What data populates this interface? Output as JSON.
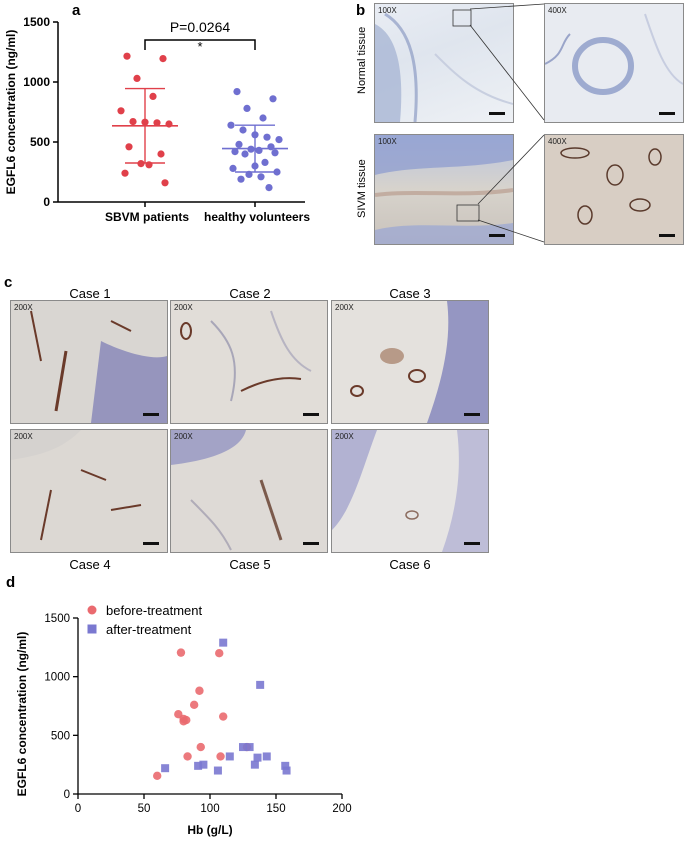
{
  "panels": {
    "a": "a",
    "b": "b",
    "c": "c",
    "d": "d"
  },
  "chart_data": [
    {
      "type": "scatter",
      "title": "",
      "ylabel": "EGFL6 concentration (ng/ml)",
      "xlabel": "",
      "ylim": [
        0,
        1500
      ],
      "yticks": [
        "0",
        "500",
        "1000",
        "1500"
      ],
      "categories": [
        "SBVM patients",
        "healthy volunteers"
      ],
      "annotation_p": "P=0.0264",
      "annotation_star": "*",
      "series": [
        {
          "category": "SBVM patients",
          "color": "#e0404a",
          "mean": 635,
          "sd_upper": 945,
          "sd_lower": 325,
          "values": [
            1215,
            1195,
            1030,
            880,
            760,
            670,
            665,
            660,
            650,
            460,
            400,
            320,
            310,
            240,
            160
          ]
        },
        {
          "category": "healthy volunteers",
          "color": "#6f6fd0",
          "mean": 445,
          "sd_upper": 640,
          "sd_lower": 250,
          "values": [
            920,
            860,
            780,
            700,
            640,
            600,
            560,
            540,
            520,
            480,
            460,
            440,
            430,
            420,
            410,
            400,
            330,
            300,
            280,
            250,
            230,
            210,
            190,
            120
          ]
        }
      ]
    },
    {
      "type": "scatter",
      "title": "",
      "xlabel": "Hb (g/L)",
      "ylabel": "EGFL6 concentration (ng/ml)",
      "xlim": [
        0,
        200
      ],
      "ylim": [
        0,
        1500
      ],
      "xticks": [
        "0",
        "50",
        "100",
        "150",
        "200"
      ],
      "yticks": [
        "0",
        "500",
        "1000",
        "1500"
      ],
      "legend_position": "top-left",
      "series": [
        {
          "name": "before-treatment",
          "color": "#ea6a6f",
          "marker": "circle",
          "points": [
            [
              60,
              155
            ],
            [
              78,
              1205
            ],
            [
              107,
              1200
            ],
            [
              92,
              880
            ],
            [
              88,
              760
            ],
            [
              76,
              680
            ],
            [
              80,
              640
            ],
            [
              82,
              630
            ],
            [
              80,
              620
            ],
            [
              110,
              660
            ],
            [
              93,
              400
            ],
            [
              83,
              320
            ],
            [
              108,
              320
            ],
            [
              128,
              400
            ]
          ]
        },
        {
          "name": "after-treatment",
          "color": "#7a78d0",
          "marker": "square",
          "points": [
            [
              110,
              1290
            ],
            [
              138,
              930
            ],
            [
              66,
              220
            ],
            [
              91,
              240
            ],
            [
              95,
              250
            ],
            [
              106,
              200
            ],
            [
              115,
              320
            ],
            [
              125,
              400
            ],
            [
              130,
              400
            ],
            [
              134,
              250
            ],
            [
              136,
              310
            ],
            [
              143,
              320
            ],
            [
              157,
              240
            ],
            [
              158,
              200
            ]
          ]
        }
      ]
    }
  ],
  "panel_b": {
    "row_labels": [
      "Normal tissue",
      "SIVM tissue"
    ],
    "magnifications": [
      "100X",
      "400X",
      "100X",
      "400X"
    ]
  },
  "panel_c": {
    "cases": [
      "Case 1",
      "Case 2",
      "Case 3",
      "Case 4",
      "Case 5",
      "Case 6"
    ],
    "magnification": "200X"
  }
}
